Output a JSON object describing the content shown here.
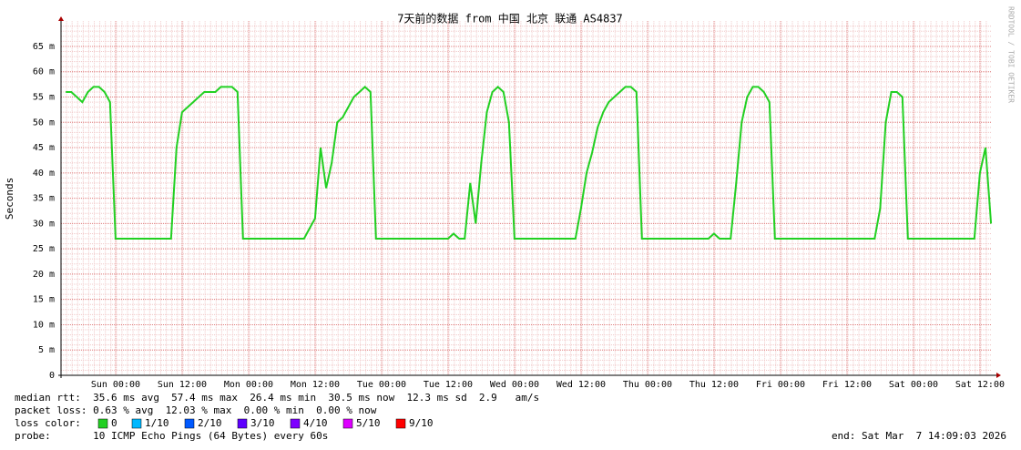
{
  "chart_data": {
    "type": "line",
    "title": "7天前的数据 from 中国 北京 联通 AS4837",
    "y_label": "Seconds",
    "side_label": "RRDTOOL / TOBI OETIKER",
    "ylim": [
      0,
      0.07
    ],
    "yticks": [
      0,
      {
        "value": 0.005,
        "label": "5 m"
      },
      {
        "value": 0.01,
        "label": "10 m"
      },
      {
        "value": 0.015,
        "label": "15 m"
      },
      {
        "value": 0.02,
        "label": "20 m"
      },
      {
        "value": 0.025,
        "label": "25 m"
      },
      {
        "value": 0.03,
        "label": "30 m"
      },
      {
        "value": 0.035,
        "label": "35 m"
      },
      {
        "value": 0.04,
        "label": "40 m"
      },
      {
        "value": 0.045,
        "label": "45 m"
      },
      {
        "value": 0.05,
        "label": "50 m"
      },
      {
        "value": 0.055,
        "label": "55 m"
      },
      {
        "value": 0.06,
        "label": "60 m"
      },
      {
        "value": 0.065,
        "label": "65 m"
      }
    ],
    "xlim": [
      -9.85,
      158.15
    ],
    "xticks": [
      {
        "value": 0,
        "label": "Sun 00:00"
      },
      {
        "value": 12,
        "label": "Sun 12:00"
      },
      {
        "value": 24,
        "label": "Mon 00:00"
      },
      {
        "value": 36,
        "label": "Mon 12:00"
      },
      {
        "value": 48,
        "label": "Tue 00:00"
      },
      {
        "value": 60,
        "label": "Tue 12:00"
      },
      {
        "value": 72,
        "label": "Wed 00:00"
      },
      {
        "value": 84,
        "label": "Wed 12:00"
      },
      {
        "value": 96,
        "label": "Thu 00:00"
      },
      {
        "value": 108,
        "label": "Thu 12:00"
      },
      {
        "value": 120,
        "label": "Fri 00:00"
      },
      {
        "value": 132,
        "label": "Fri 12:00"
      },
      {
        "value": 144,
        "label": "Sat 00:00"
      },
      {
        "value": 156,
        "label": "Sat 12:00"
      }
    ],
    "grid": true,
    "series": [
      {
        "name": "median rtt",
        "color": "#22d022",
        "x": [
          -9,
          -8,
          -7,
          -6,
          -5,
          -4,
          -3,
          -2,
          -1,
          0,
          1,
          2,
          3,
          4,
          5,
          6,
          7,
          8,
          9,
          10,
          11,
          12,
          13,
          14,
          15,
          16,
          17,
          18,
          19,
          20,
          21,
          22,
          23,
          24,
          25,
          26,
          27,
          28,
          29,
          30,
          31,
          32,
          33,
          34,
          35,
          36,
          37,
          38,
          39,
          40,
          41,
          42,
          43,
          44,
          45,
          46,
          47,
          48,
          49,
          50,
          51,
          52,
          53,
          54,
          55,
          56,
          57,
          58,
          59,
          60,
          61,
          62,
          63,
          64,
          65,
          66,
          67,
          68,
          69,
          70,
          71,
          72,
          73,
          74,
          75,
          76,
          77,
          78,
          79,
          80,
          81,
          82,
          83,
          84,
          85,
          86,
          87,
          88,
          89,
          90,
          91,
          92,
          93,
          94,
          95,
          96,
          97,
          98,
          99,
          100,
          101,
          102,
          103,
          104,
          105,
          106,
          107,
          108,
          109,
          110,
          111,
          112,
          113,
          114,
          115,
          116,
          117,
          118,
          119,
          120,
          121,
          122,
          123,
          124,
          125,
          126,
          127,
          128,
          129,
          130,
          131,
          132,
          133,
          134,
          135,
          136,
          137,
          138,
          139,
          140,
          141,
          142,
          143,
          144,
          145,
          146,
          147,
          148,
          149,
          150,
          151,
          152,
          153,
          154,
          155,
          156,
          157,
          158
        ],
        "values": [
          0.056,
          0.056,
          0.055,
          0.054,
          0.056,
          0.057,
          0.057,
          0.056,
          0.054,
          0.027,
          0.027,
          0.027,
          0.027,
          0.027,
          0.027,
          0.027,
          0.027,
          0.027,
          0.027,
          0.027,
          0.045,
          0.052,
          0.053,
          0.054,
          0.055,
          0.056,
          0.056,
          0.056,
          0.057,
          0.057,
          0.057,
          0.056,
          0.027,
          0.027,
          0.027,
          0.027,
          0.027,
          0.027,
          0.027,
          0.027,
          0.027,
          0.027,
          0.027,
          0.027,
          0.029,
          0.031,
          0.045,
          0.037,
          0.042,
          0.05,
          0.051,
          0.053,
          0.055,
          0.056,
          0.057,
          0.056,
          0.027,
          0.027,
          0.027,
          0.027,
          0.027,
          0.027,
          0.027,
          0.027,
          0.027,
          0.027,
          0.027,
          0.027,
          0.027,
          0.027,
          0.028,
          0.027,
          0.027,
          0.038,
          0.03,
          0.042,
          0.052,
          0.056,
          0.057,
          0.056,
          0.05,
          0.027,
          0.027,
          0.027,
          0.027,
          0.027,
          0.027,
          0.027,
          0.027,
          0.027,
          0.027,
          0.027,
          0.027,
          0.033,
          0.04,
          0.044,
          0.049,
          0.052,
          0.054,
          0.055,
          0.056,
          0.057,
          0.057,
          0.056,
          0.027,
          0.027,
          0.027,
          0.027,
          0.027,
          0.027,
          0.027,
          0.027,
          0.027,
          0.027,
          0.027,
          0.027,
          0.027,
          0.028,
          0.027,
          0.027,
          0.027,
          0.038,
          0.05,
          0.055,
          0.057,
          0.057,
          0.056,
          0.054,
          0.027,
          0.027,
          0.027,
          0.027,
          0.027,
          0.027,
          0.027,
          0.027,
          0.027,
          0.027,
          0.027,
          0.027,
          0.027,
          0.027,
          0.027,
          0.027,
          0.027,
          0.027,
          0.027,
          0.033,
          0.05,
          0.056,
          0.056,
          0.055,
          0.027,
          0.027,
          0.027,
          0.027,
          0.027,
          0.027,
          0.027,
          0.027,
          0.027,
          0.027,
          0.027,
          0.027,
          0.027,
          0.04,
          0.045,
          0.03
        ]
      }
    ],
    "stats": [
      "median rtt:  35.6 ms avg  57.4 ms max  26.4 ms min  30.5 ms now  12.3 ms sd  2.9   am/s",
      "packet loss: 0.63 % avg  12.03 % max  0.00 % min  0.00 % now"
    ],
    "loss_color_label": "loss color:",
    "loss_colors": [
      {
        "name": "0",
        "color": "#22d022"
      },
      {
        "name": "1/10",
        "color": "#00b8ff"
      },
      {
        "name": "2/10",
        "color": "#0059ff"
      },
      {
        "name": "3/10",
        "color": "#5e00ff"
      },
      {
        "name": "4/10",
        "color": "#7e00ff"
      },
      {
        "name": "5/10",
        "color": "#dd00ff"
      },
      {
        "name": "9/10",
        "color": "#ff0000"
      }
    ],
    "probe": "probe:       10 ICMP Echo Pings (64 Bytes) every 60s",
    "end": "end: Sat Mar  7 14:09:03 2026"
  }
}
